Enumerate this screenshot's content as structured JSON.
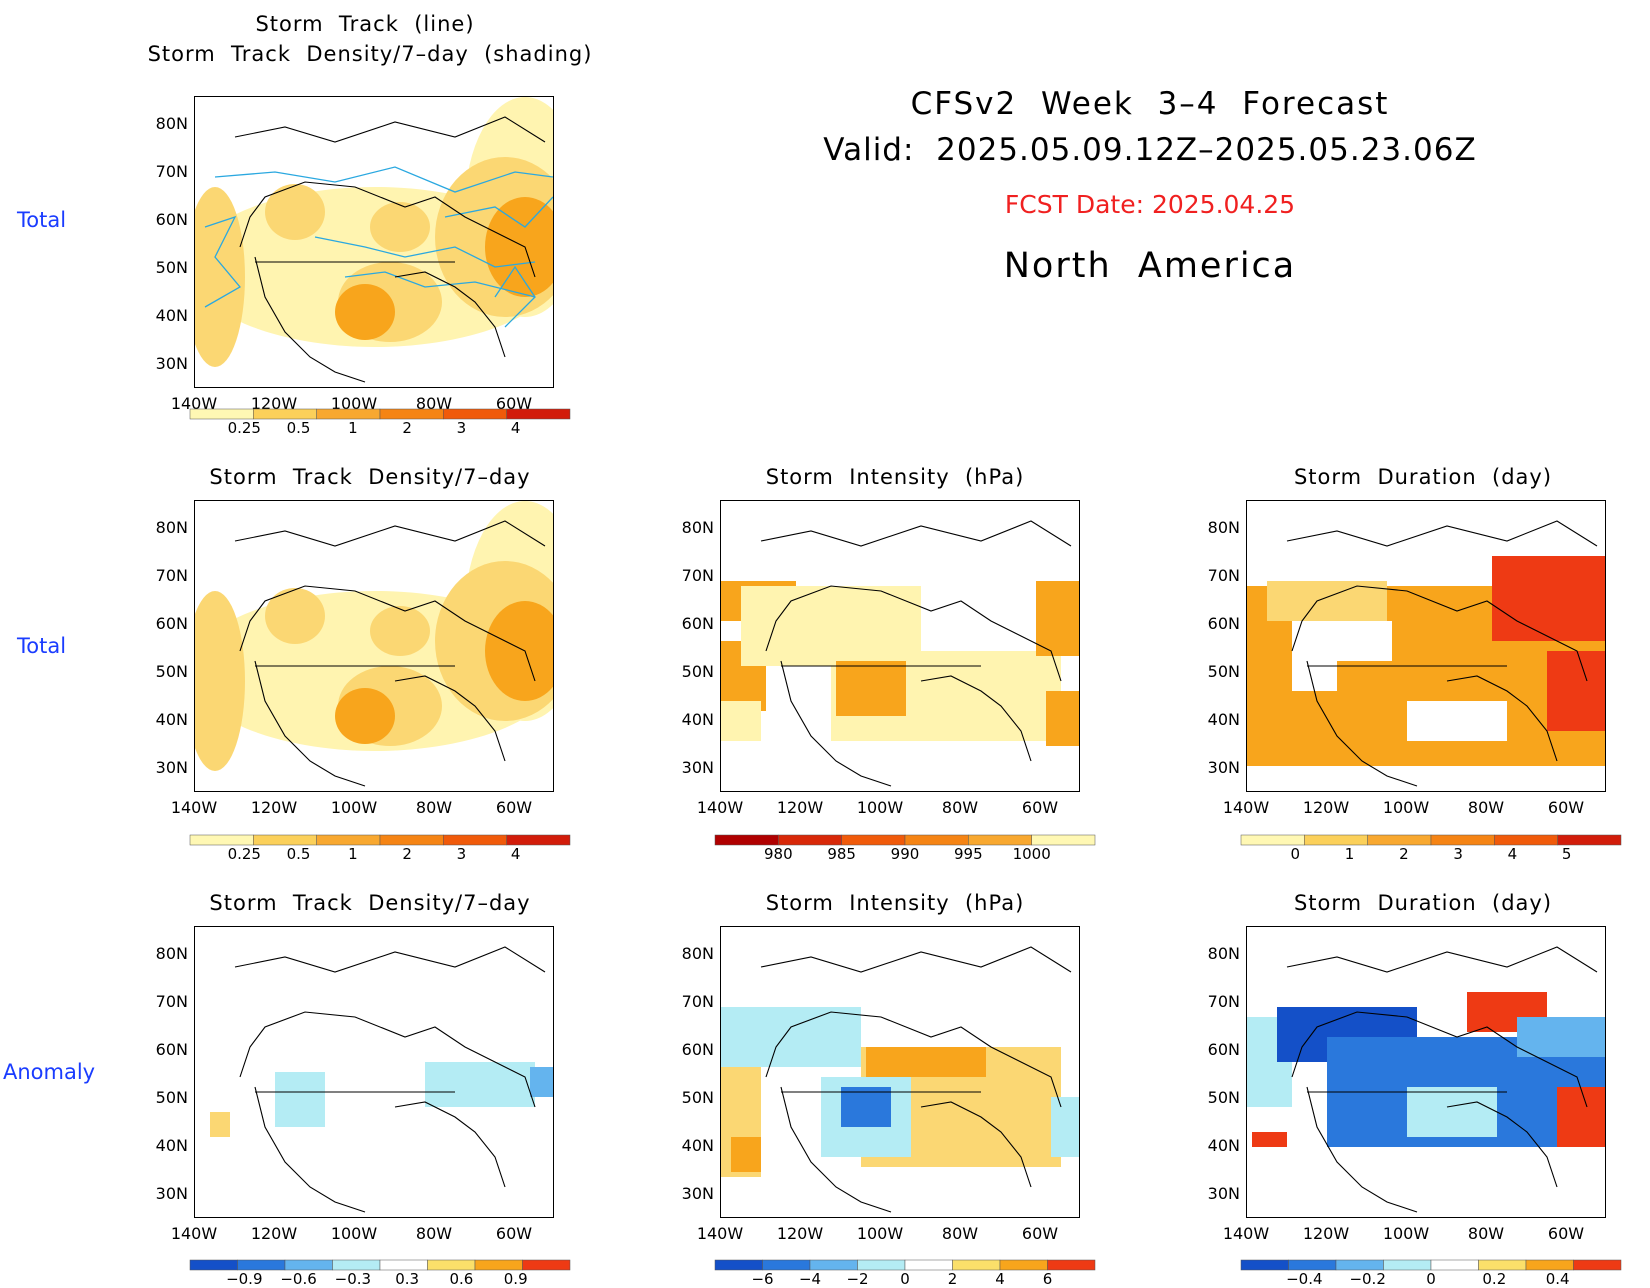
{
  "header": {
    "line1": "CFSv2  Week  3–4  Forecast",
    "line2": "Valid:  2025.05.09.12Z–2025.05.23.06Z",
    "fcst": "FCST Date: 2025.04.25",
    "region": "North  America"
  },
  "rows": {
    "total1": "Total",
    "total2": "Total",
    "anomaly": "Anomaly"
  },
  "panels": {
    "p1": {
      "title1": "Storm  Track  (line)",
      "title2": "Storm  Track  Density/7–day  (shading)"
    },
    "p2": {
      "title": "Storm  Track  Density/7–day"
    },
    "p3": {
      "title": "Storm  Intensity  (hPa)"
    },
    "p4": {
      "title": "Storm  Duration  (day)"
    },
    "p5": {
      "title": "Storm  Track  Density/7–day"
    },
    "p6": {
      "title": "Storm  Intensity  (hPa)"
    },
    "p7": {
      "title": "Storm  Duration  (day)"
    }
  },
  "axes": {
    "lat": [
      "80N",
      "70N",
      "60N",
      "50N",
      "40N",
      "30N"
    ],
    "lon": [
      "140W",
      "120W",
      "100W",
      "80W",
      "60W"
    ]
  },
  "colorbars": {
    "density": {
      "labels": [
        "0.25",
        "0.5",
        "1",
        "2",
        "3",
        "4"
      ],
      "colors": [
        "#fff8b4",
        "#fbd05a",
        "#f8a830",
        "#f58414",
        "#f05a0a",
        "#d21c0a"
      ]
    },
    "intensity": {
      "labels": [
        "980",
        "985",
        "990",
        "995",
        "1000"
      ],
      "colors": [
        "#b00000",
        "#d82808",
        "#f05a0a",
        "#f58414",
        "#f8a830",
        "#fff8b4"
      ]
    },
    "duration": {
      "labels": [
        "0",
        "1",
        "2",
        "3",
        "4",
        "5"
      ],
      "colors": [
        "#fff8b4",
        "#fbd05a",
        "#f8a830",
        "#f58414",
        "#f05a0a",
        "#d21c0a"
      ]
    },
    "dens_anom": {
      "labels": [
        "−0.9",
        "−0.6",
        "−0.3",
        "0.3",
        "0.6",
        "0.9"
      ]
    },
    "int_anom": {
      "labels": [
        "−6",
        "−4",
        "−2",
        "0",
        "2",
        "4",
        "6"
      ]
    },
    "dur_anom": {
      "labels": [
        "−0.4",
        "−0.2",
        "0",
        "0.2",
        "0.4"
      ]
    }
  },
  "colors": {
    "pale_yellow": "#fff4b0",
    "light_orange": "#fbd773",
    "orange": "#f8a51c",
    "dark_orange": "#f08a10",
    "red": "#ee3a14",
    "light_blue": "#b4ecf4",
    "mid_blue": "#64b4ee",
    "blue": "#2a78dc",
    "dark_blue": "#1450c8",
    "track_line": "#2aa8e0",
    "row_label": "#1a3cff",
    "fcst_red": "#f02020"
  }
}
